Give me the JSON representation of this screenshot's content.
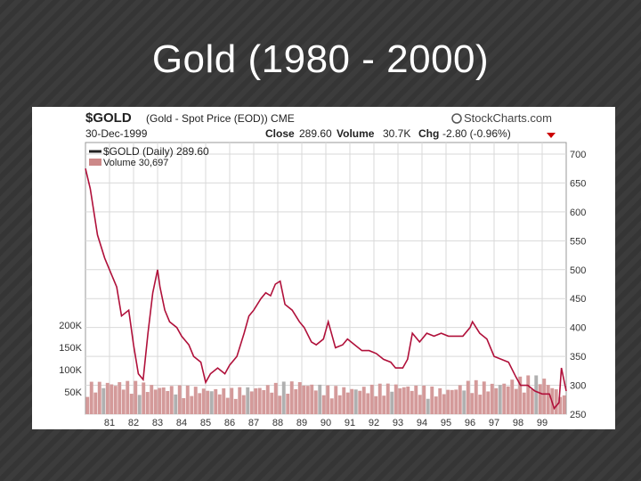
{
  "slide": {
    "title": "Gold (1980 - 2000)"
  },
  "chart_header": {
    "symbol": "$GOLD",
    "description": "(Gold - Spot Price (EOD)) CME",
    "brand": "StockCharts.com",
    "date": "30-Dec-1999",
    "close_label": "Close",
    "close_value": "289.60",
    "volume_label": "Volume",
    "volume_value": "30.7K",
    "chg_label": "Chg",
    "chg_value": "-2.80 (-0.96%)",
    "legend_price": "$GOLD (Daily) 289.60",
    "legend_volume": "Volume 30,697"
  },
  "colors": {
    "price_line": "#b0103a",
    "volume_bar": "#d49a9a",
    "volume_bar_alt": "#b0b0b0",
    "grid": "#d9d9d9",
    "down_arrow": "#cc0000"
  },
  "chart_data": {
    "type": "line",
    "x": [
      1980.0,
      1980.2,
      1980.5,
      1980.8,
      1981.0,
      1981.3,
      1981.5,
      1981.8,
      1982.0,
      1982.2,
      1982.4,
      1982.6,
      1982.8,
      1983.0,
      1983.1,
      1983.3,
      1983.5,
      1983.8,
      1984.0,
      1984.3,
      1984.5,
      1984.8,
      1985.0,
      1985.2,
      1985.5,
      1985.8,
      1986.0,
      1986.3,
      1986.6,
      1986.8,
      1987.0,
      1987.3,
      1987.5,
      1987.7,
      1987.9,
      1988.1,
      1988.3,
      1988.6,
      1988.9,
      1989.1,
      1989.4,
      1989.6,
      1989.9,
      1990.1,
      1990.4,
      1990.7,
      1990.9,
      1991.2,
      1991.5,
      1991.8,
      1992.1,
      1992.4,
      1992.7,
      1992.9,
      1993.2,
      1993.4,
      1993.6,
      1993.9,
      1994.2,
      1994.5,
      1994.8,
      1995.1,
      1995.4,
      1995.7,
      1996.0,
      1996.1,
      1996.4,
      1996.7,
      1997.0,
      1997.3,
      1997.6,
      1997.9,
      1998.1,
      1998.4,
      1998.7,
      1999.0,
      1999.3,
      1999.5,
      1999.7,
      1999.8,
      2000.0
    ],
    "y": [
      675,
      640,
      560,
      520,
      500,
      470,
      420,
      430,
      370,
      320,
      310,
      390,
      460,
      500,
      470,
      430,
      410,
      400,
      385,
      370,
      350,
      340,
      305,
      320,
      330,
      320,
      335,
      350,
      390,
      420,
      430,
      450,
      460,
      455,
      475,
      480,
      440,
      430,
      410,
      400,
      375,
      370,
      380,
      410,
      365,
      370,
      380,
      370,
      360,
      360,
      355,
      345,
      340,
      330,
      330,
      345,
      390,
      375,
      390,
      385,
      390,
      385,
      385,
      385,
      400,
      410,
      390,
      380,
      350,
      345,
      340,
      315,
      300,
      300,
      290,
      285,
      285,
      260,
      270,
      330,
      290
    ],
    "volume_x": [
      1980,
      1981,
      1982,
      1983,
      1984,
      1985,
      1986,
      1987,
      1988,
      1989,
      1990,
      1991,
      1992,
      1993,
      1994,
      1995,
      1996,
      1997,
      1998,
      1999,
      2000
    ],
    "volume_y": [
      55,
      60,
      58,
      52,
      50,
      48,
      45,
      50,
      55,
      60,
      50,
      48,
      52,
      55,
      50,
      45,
      60,
      55,
      65,
      70,
      30
    ],
    "title": "$GOLD (Gold - Spot Price (EOD)) CME",
    "xlabel": "",
    "ylabel": "",
    "x_tick_labels": [
      "81",
      "82",
      "83",
      "84",
      "85",
      "86",
      "87",
      "88",
      "89",
      "90",
      "91",
      "92",
      "93",
      "94",
      "95",
      "96",
      "97",
      "98",
      "99"
    ],
    "y_tick_labels": [
      "700",
      "650",
      "600",
      "550",
      "500",
      "450",
      "400",
      "350",
      "300",
      "250"
    ],
    "volume_tick_labels": [
      "200K",
      "150K",
      "100K",
      "50K"
    ],
    "ylim": [
      250,
      720
    ],
    "volume_ylim": [
      0,
      250
    ],
    "xlim": [
      1980,
      2000
    ],
    "grid": true,
    "legend_position": "top-left"
  }
}
